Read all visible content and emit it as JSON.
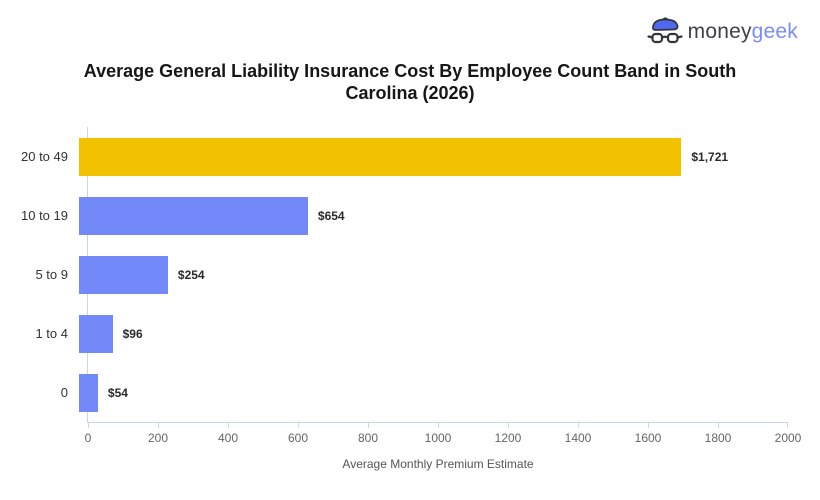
{
  "logo": {
    "brand_prefix": "money",
    "brand_suffix": "geek",
    "icon": "moneygeek-mascot-icon",
    "prefix_color": "#3f4048",
    "suffix_color": "#7b8cf7",
    "beret_color": "#4f68ee",
    "outline_color": "#33353d"
  },
  "title": "Average General Liability Insurance Cost By Employee Count Band in South Carolina (2026)",
  "chart_data": {
    "type": "bar",
    "orientation": "horizontal",
    "title": "Average General Liability Insurance Cost By Employee Count Band in South Carolina (2026)",
    "categories": [
      "20 to 49",
      "10 to 19",
      "5 to 9",
      "1 to 4",
      "0"
    ],
    "values": [
      1721,
      654,
      254,
      96,
      54
    ],
    "value_labels": [
      "$1,721",
      "$654",
      "$254",
      "$96",
      "$54"
    ],
    "bar_colors": [
      "#F2C100",
      "#7389F9",
      "#7389F9",
      "#7389F9",
      "#7389F9"
    ],
    "xlabel": "Average Monthly Premium Estimate",
    "ylabel": "",
    "xlim": [
      0,
      2000
    ],
    "x_ticks": [
      "0",
      "200",
      "400",
      "600",
      "800",
      "1000",
      "1200",
      "1400",
      "1600",
      "1800",
      "2000"
    ],
    "grid": false,
    "legend": "none",
    "axis_color": "#ccd6eb",
    "tick_label_color": "#666666",
    "category_label_color": "#333333",
    "value_label_color": "#2b2b2b"
  }
}
